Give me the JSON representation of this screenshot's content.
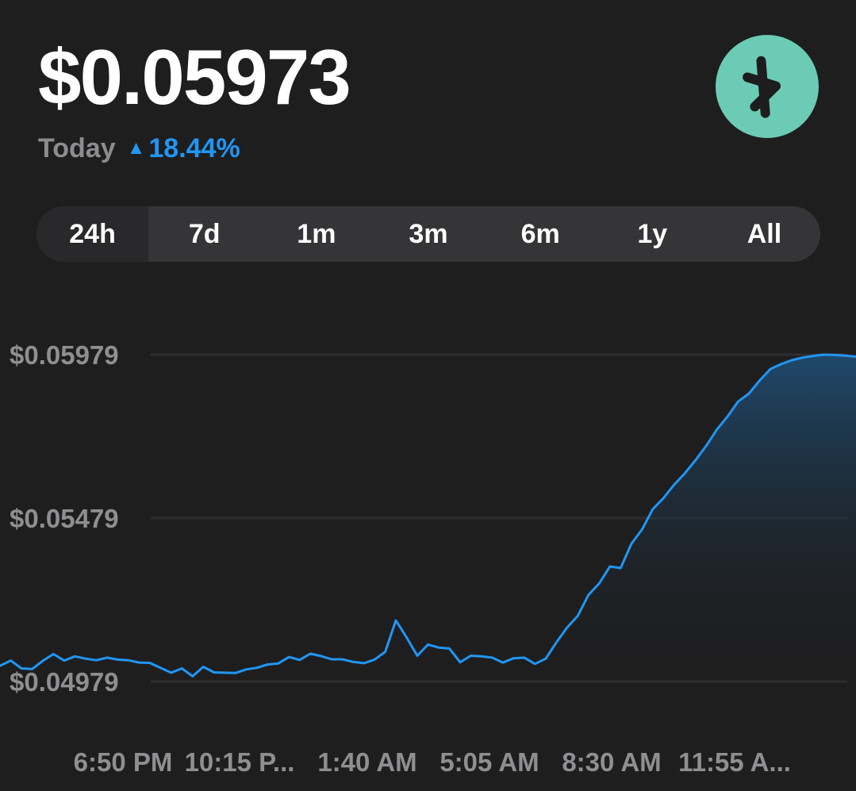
{
  "header": {
    "price": "$0.05973",
    "period_label": "Today",
    "change_arrow": "▲",
    "change_percent": "18.44%",
    "logo_icon": "kaspa-logo-icon",
    "accent_color": "#2196f3",
    "logo_color": "#6ccbb5"
  },
  "tabs": [
    {
      "label": "24h",
      "active": true
    },
    {
      "label": "7d",
      "active": false
    },
    {
      "label": "1m",
      "active": false
    },
    {
      "label": "3m",
      "active": false
    },
    {
      "label": "6m",
      "active": false
    },
    {
      "label": "1y",
      "active": false
    },
    {
      "label": "All",
      "active": false
    }
  ],
  "chart_data": {
    "type": "area",
    "x_tick_labels": [
      "6:50 PM",
      "10:15 P...",
      "1:40 AM",
      "5:05 AM",
      "8:30 AM",
      "11:55 A..."
    ],
    "y_tick_labels": [
      "$0.05979",
      "$0.05479",
      "$0.04979"
    ],
    "y_ticks": [
      0.05979,
      0.05479,
      0.04979
    ],
    "ylim": [
      0.04979,
      0.05979
    ],
    "grid": true,
    "line_color": "#2196f3",
    "x": [
      0,
      0.3,
      0.6,
      0.9,
      1.2,
      1.5,
      1.8,
      2.1,
      2.4,
      2.7,
      3.0,
      3.3,
      3.6,
      3.9,
      4.2,
      4.5,
      4.8,
      5.1,
      5.4,
      5.7,
      6.0,
      6.3,
      6.6,
      6.9,
      7.2,
      7.5,
      7.8,
      8.1,
      8.4,
      8.7,
      9.0,
      9.3,
      9.6,
      9.9,
      10.2,
      10.5,
      10.8,
      11.1,
      11.4,
      11.7,
      12.0,
      12.3,
      12.6,
      12.9,
      13.2,
      13.5,
      13.8,
      14.1,
      14.4,
      14.7,
      15.0,
      15.3,
      15.6,
      15.9,
      16.2,
      16.5,
      16.8,
      17.1,
      17.4,
      17.7,
      18.0,
      18.3,
      18.6,
      18.9,
      19.2,
      19.5,
      19.8,
      20.1,
      20.4,
      20.7,
      21.0,
      21.3,
      21.6,
      21.9,
      22.2,
      22.5,
      22.8,
      23.1,
      23.4,
      23.7,
      24.0
    ],
    "y": [
      0.05027,
      0.05043,
      0.05019,
      0.05017,
      0.05042,
      0.05063,
      0.05043,
      0.05056,
      0.05049,
      0.05044,
      0.05052,
      0.05046,
      0.05044,
      0.05037,
      0.05036,
      0.05021,
      0.05006,
      0.05019,
      0.04995,
      0.05024,
      0.05007,
      0.05006,
      0.05005,
      0.05016,
      0.05021,
      0.05031,
      0.05034,
      0.05054,
      0.05045,
      0.05064,
      0.05057,
      0.05047,
      0.05047,
      0.05039,
      0.05035,
      0.05046,
      0.0507,
      0.05166,
      0.05114,
      0.05058,
      0.05092,
      0.05083,
      0.0508,
      0.05038,
      0.05058,
      0.05056,
      0.05052,
      0.05037,
      0.0505,
      0.05052,
      0.05033,
      0.05049,
      0.05099,
      0.05144,
      0.0518,
      0.05244,
      0.05279,
      0.05331,
      0.05326,
      0.054,
      0.05444,
      0.05506,
      0.0554,
      0.05581,
      0.05616,
      0.05656,
      0.057,
      0.0575,
      0.0579,
      0.05836,
      0.0586,
      0.059,
      0.05935,
      0.0595,
      0.05962,
      0.0597,
      0.05975,
      0.05979,
      0.05978,
      0.05976,
      0.05973
    ]
  }
}
